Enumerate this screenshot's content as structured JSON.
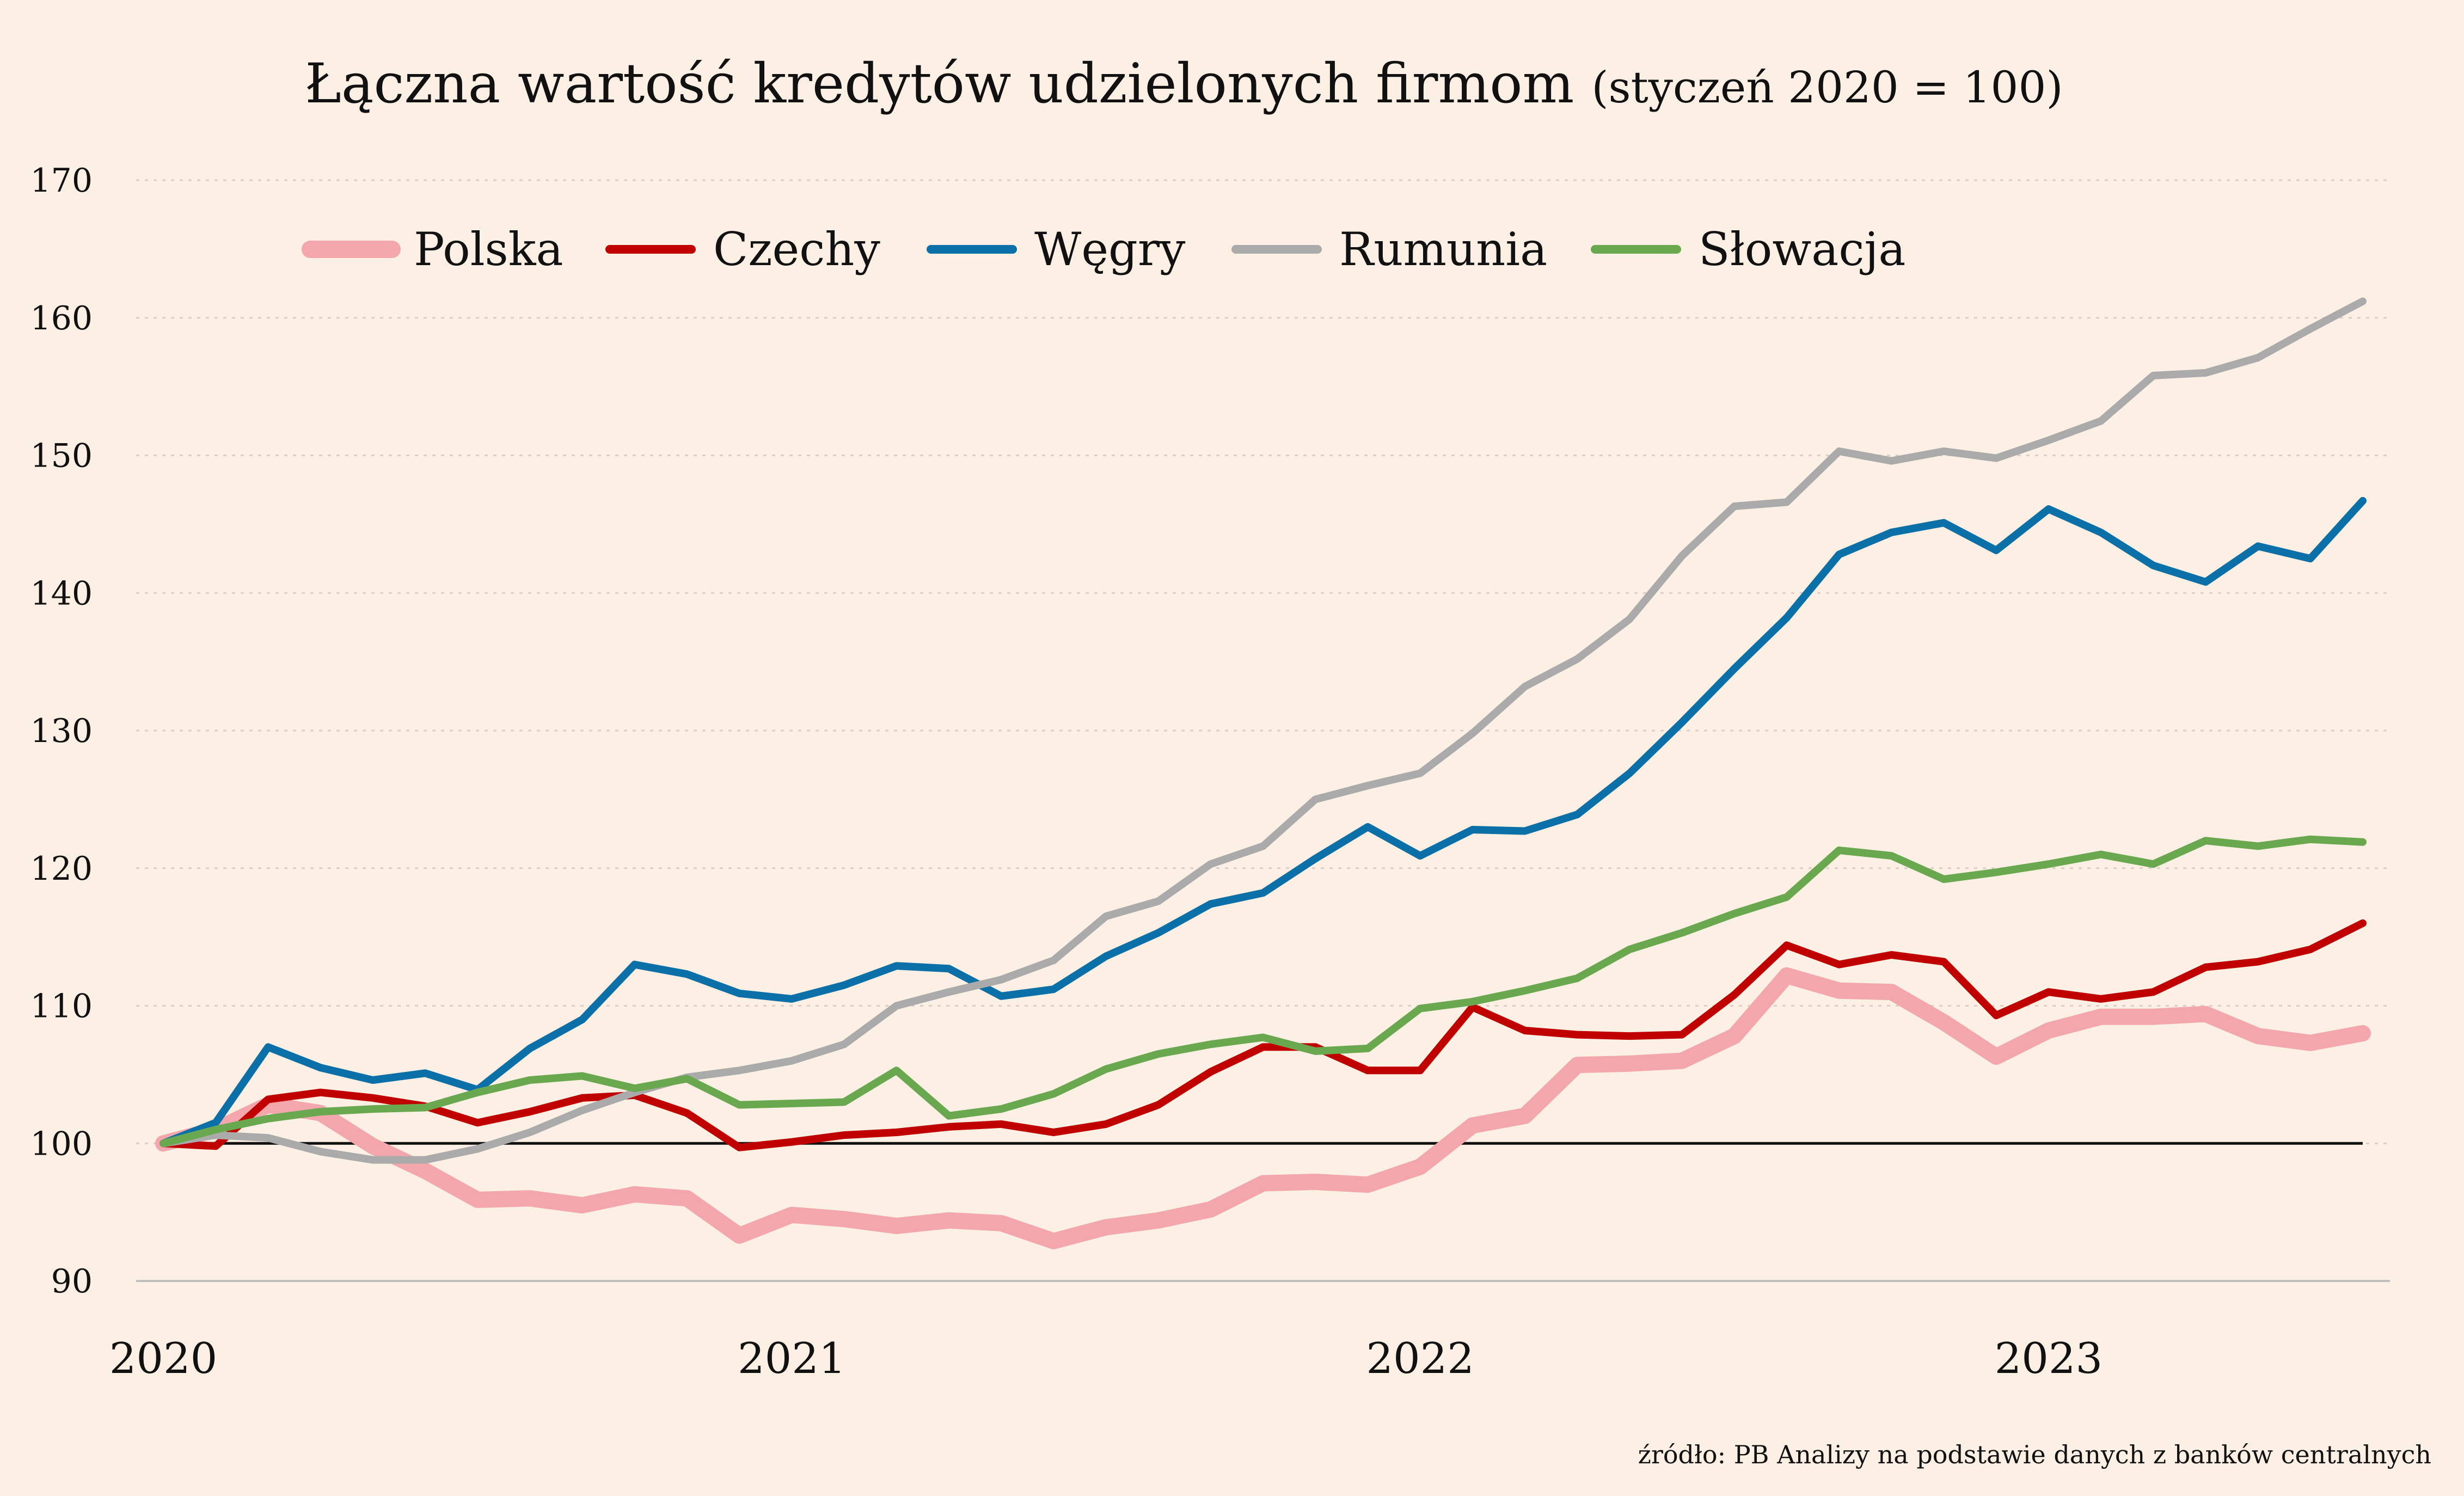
{
  "chart_data": {
    "type": "line",
    "title": "Łączna wartość kredytów udzielonych firmom",
    "subtitle": "(styczeń 2020 = 100)",
    "source": "źródło: PB Analizy na podstawie danych z banków centralnych",
    "ylim": [
      90,
      170
    ],
    "yticks": [
      90,
      100,
      110,
      120,
      130,
      140,
      150,
      160,
      170
    ],
    "grid": true,
    "legend_position": "top-left",
    "x_start": "2020-01",
    "x_end": "2023-07",
    "x": [
      "2020-01",
      "2020-02",
      "2020-03",
      "2020-04",
      "2020-05",
      "2020-06",
      "2020-07",
      "2020-08",
      "2020-09",
      "2020-10",
      "2020-11",
      "2020-12",
      "2021-01",
      "2021-02",
      "2021-03",
      "2021-04",
      "2021-05",
      "2021-06",
      "2021-07",
      "2021-08",
      "2021-09",
      "2021-10",
      "2021-11",
      "2021-12",
      "2022-01",
      "2022-02",
      "2022-03",
      "2022-04",
      "2022-05",
      "2022-06",
      "2022-07",
      "2022-08",
      "2022-09",
      "2022-10",
      "2022-11",
      "2022-12",
      "2023-01",
      "2023-02",
      "2023-03",
      "2023-04",
      "2023-05",
      "2023-06",
      "2023-07"
    ],
    "xticks": [
      {
        "label": "2020",
        "x": "2020-01"
      },
      {
        "label": "2021",
        "x": "2021-01"
      },
      {
        "label": "2022",
        "x": "2022-01"
      },
      {
        "label": "2023",
        "x": "2023-01"
      }
    ],
    "reference_line": 100,
    "series": [
      {
        "name": "Polska",
        "color": "#f4a6ad",
        "values": [
          100,
          101.0,
          102.8,
          102.2,
          99.8,
          98.0,
          95.9,
          96.0,
          95.5,
          96.3,
          96.0,
          93.3,
          94.8,
          94.5,
          94.0,
          94.4,
          94.2,
          92.9,
          93.9,
          94.4,
          95.2,
          97.1,
          97.2,
          97.0,
          98.3,
          101.3,
          102.0,
          105.7,
          105.8,
          106.0,
          107.8,
          112.2,
          111.1,
          111.0,
          108.8,
          106.3,
          108.2,
          109.2,
          109.2,
          109.4,
          107.8,
          107.3,
          108.0
        ]
      },
      {
        "name": "Czechy",
        "color": "#c00000",
        "values": [
          100,
          99.8,
          103.2,
          103.7,
          103.3,
          102.7,
          101.5,
          102.3,
          103.3,
          103.5,
          102.2,
          99.7,
          100.1,
          100.6,
          100.8,
          101.2,
          101.4,
          100.8,
          101.4,
          102.8,
          105.2,
          107.0,
          107.0,
          105.3,
          105.3,
          109.9,
          108.2,
          107.9,
          107.8,
          107.9,
          110.8,
          114.4,
          113.0,
          113.7,
          113.2,
          109.3,
          111.0,
          110.5,
          111.0,
          112.8,
          113.2,
          114.1,
          116.0
        ]
      },
      {
        "name": "Węgry",
        "color": "#0b6fa8",
        "values": [
          100,
          101.5,
          107.0,
          105.5,
          104.6,
          105.1,
          103.9,
          106.9,
          109.0,
          113.0,
          112.3,
          110.9,
          110.5,
          111.5,
          112.9,
          112.7,
          110.7,
          111.2,
          113.6,
          115.3,
          117.4,
          118.2,
          120.7,
          123.0,
          120.9,
          122.8,
          122.7,
          123.9,
          126.9,
          130.6,
          134.5,
          138.2,
          142.8,
          144.4,
          145.1,
          143.1,
          146.1,
          144.4,
          142.0,
          140.8,
          143.4,
          142.5,
          146.7
        ]
      },
      {
        "name": "Rumunia",
        "color": "#aaaaaa",
        "values": [
          100,
          100.6,
          100.4,
          99.4,
          98.8,
          98.8,
          99.6,
          100.8,
          102.4,
          103.7,
          104.8,
          105.3,
          106.0,
          107.2,
          110.0,
          111.0,
          111.9,
          113.3,
          116.5,
          117.6,
          120.3,
          121.6,
          125.0,
          126.0,
          126.9,
          129.8,
          133.2,
          135.2,
          138.1,
          142.7,
          146.3,
          146.6,
          150.3,
          149.6,
          150.3,
          149.8,
          151.1,
          152.5,
          155.8,
          156.0,
          157.1,
          159.2,
          161.2
        ]
      },
      {
        "name": "Słowacja",
        "color": "#6aa84f",
        "values": [
          100,
          101.0,
          101.8,
          102.3,
          102.5,
          102.6,
          103.7,
          104.6,
          104.9,
          104.0,
          104.7,
          102.8,
          102.9,
          103.0,
          105.3,
          102.0,
          102.5,
          103.6,
          105.4,
          106.5,
          107.2,
          107.7,
          106.7,
          106.9,
          109.8,
          110.3,
          111.1,
          112.0,
          114.1,
          115.3,
          116.7,
          117.9,
          121.3,
          120.9,
          119.2,
          119.7,
          120.3,
          121.0,
          120.3,
          122.0,
          121.6,
          122.1,
          121.9
        ]
      }
    ]
  }
}
